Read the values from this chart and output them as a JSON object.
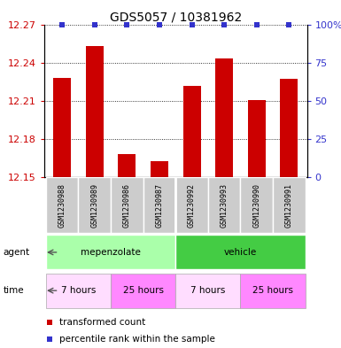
{
  "title": "GDS5057 / 10381962",
  "samples": [
    "GSM1230988",
    "GSM1230989",
    "GSM1230986",
    "GSM1230987",
    "GSM1230992",
    "GSM1230993",
    "GSM1230990",
    "GSM1230991"
  ],
  "bar_values": [
    12.228,
    12.253,
    12.168,
    12.163,
    12.222,
    12.243,
    12.211,
    12.227
  ],
  "ylim_left": [
    12.15,
    12.27
  ],
  "ylim_right": [
    0,
    100
  ],
  "yticks_left": [
    12.15,
    12.18,
    12.21,
    12.24,
    12.27
  ],
  "yticks_right": [
    0,
    25,
    50,
    75,
    100
  ],
  "bar_color": "#cc0000",
  "percentile_color": "#3333cc",
  "agent_labels": [
    {
      "label": "mepenzolate",
      "start": 0,
      "end": 4,
      "color": "#aaffaa"
    },
    {
      "label": "vehicle",
      "start": 4,
      "end": 8,
      "color": "#44cc44"
    }
  ],
  "time_labels": [
    {
      "label": "7 hours",
      "start": 0,
      "end": 2,
      "color": "#ffddff"
    },
    {
      "label": "25 hours",
      "start": 2,
      "end": 4,
      "color": "#ff88ff"
    },
    {
      "label": "7 hours",
      "start": 4,
      "end": 6,
      "color": "#ffddff"
    },
    {
      "label": "25 hours",
      "start": 6,
      "end": 8,
      "color": "#ff88ff"
    }
  ],
  "sample_box_color": "#cccccc",
  "bar_width": 0.55,
  "x_positions": [
    0,
    1,
    2,
    3,
    4,
    5,
    6,
    7
  ],
  "fig_width": 3.85,
  "fig_height": 3.93,
  "dpi": 100,
  "left_label_color": "#cc0000",
  "right_label_color": "#3333cc",
  "title_fontsize": 10,
  "axis_fontsize": 8,
  "sample_fontsize": 6,
  "legend_fontsize": 7.5,
  "row_label_fontsize": 7.5,
  "annotation_fontsize": 7
}
